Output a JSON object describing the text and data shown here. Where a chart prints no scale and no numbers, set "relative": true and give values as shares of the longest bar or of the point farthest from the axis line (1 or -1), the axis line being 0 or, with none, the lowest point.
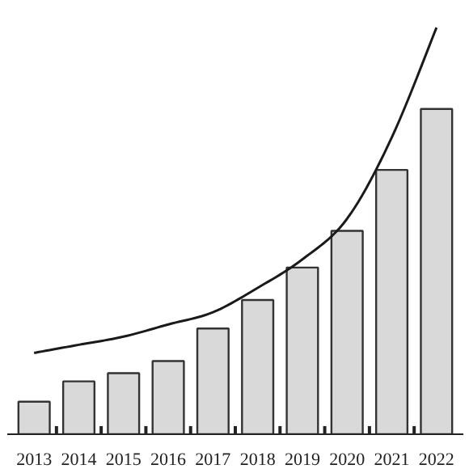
{
  "chart_data": {
    "type": "bar",
    "relative": true,
    "categories": [
      "2013",
      "2014",
      "2015",
      "2016",
      "2017",
      "2018",
      "2019",
      "2020",
      "2021",
      "2022"
    ],
    "series": [
      {
        "color": "#d9d9d9",
        "values": [
          0.08,
          0.13,
          0.15,
          0.18,
          0.26,
          0.33,
          0.41,
          0.5,
          0.65,
          0.8
        ]
      },
      {
        "type": "line",
        "color": "#1a1a1a",
        "values": [
          0.2,
          0.22,
          0.24,
          0.27,
          0.3,
          0.36,
          0.43,
          0.53,
          0.73,
          1.0
        ]
      }
    ],
    "grid": false
  }
}
